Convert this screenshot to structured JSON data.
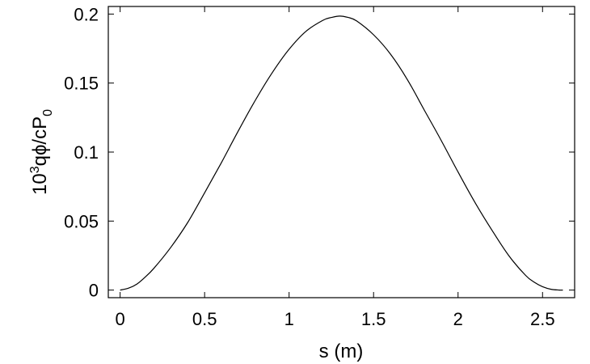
{
  "chart_data": {
    "type": "line",
    "title": "",
    "xlabel": "s (m)",
    "ylabel": {
      "prefix": "10",
      "sup": "3",
      "mid": "qϕ/cP",
      "sub": "0"
    },
    "xlim": [
      -0.07,
      2.69
    ],
    "ylim": [
      -0.0055,
      0.2055
    ],
    "x_ticks": [
      0,
      0.5,
      1,
      1.5,
      2,
      2.5
    ],
    "x_tick_labels": [
      "0",
      "0.5",
      "1",
      "1.5",
      "2",
      "2.5"
    ],
    "y_ticks": [
      0,
      0.05,
      0.1,
      0.15,
      0.2
    ],
    "y_tick_labels": [
      "0",
      "0.05",
      "0.1",
      "0.15",
      "0.2"
    ],
    "grid": false,
    "series": [
      {
        "color": "#000000",
        "x": [
          0,
          0.05,
          0.1,
          0.15,
          0.2,
          0.3,
          0.4,
          0.5,
          0.6,
          0.7,
          0.8,
          0.9,
          1.0,
          1.1,
          1.2,
          1.25,
          1.3,
          1.35,
          1.4,
          1.5,
          1.6,
          1.7,
          1.8,
          1.9,
          2.0,
          2.1,
          2.2,
          2.3,
          2.4,
          2.45,
          2.5,
          2.55,
          2.6,
          2.62
        ],
        "y": [
          0.0,
          0.0014,
          0.0044,
          0.0096,
          0.0158,
          0.031,
          0.049,
          0.0705,
          0.0925,
          0.1155,
          0.1375,
          0.1575,
          0.1745,
          0.1875,
          0.1955,
          0.1975,
          0.1985,
          0.1975,
          0.195,
          0.185,
          0.171,
          0.1525,
          0.1305,
          0.1085,
          0.0855,
          0.0635,
          0.0435,
          0.025,
          0.0106,
          0.0058,
          0.0025,
          0.0006,
          0.0,
          0.0
        ]
      }
    ]
  }
}
